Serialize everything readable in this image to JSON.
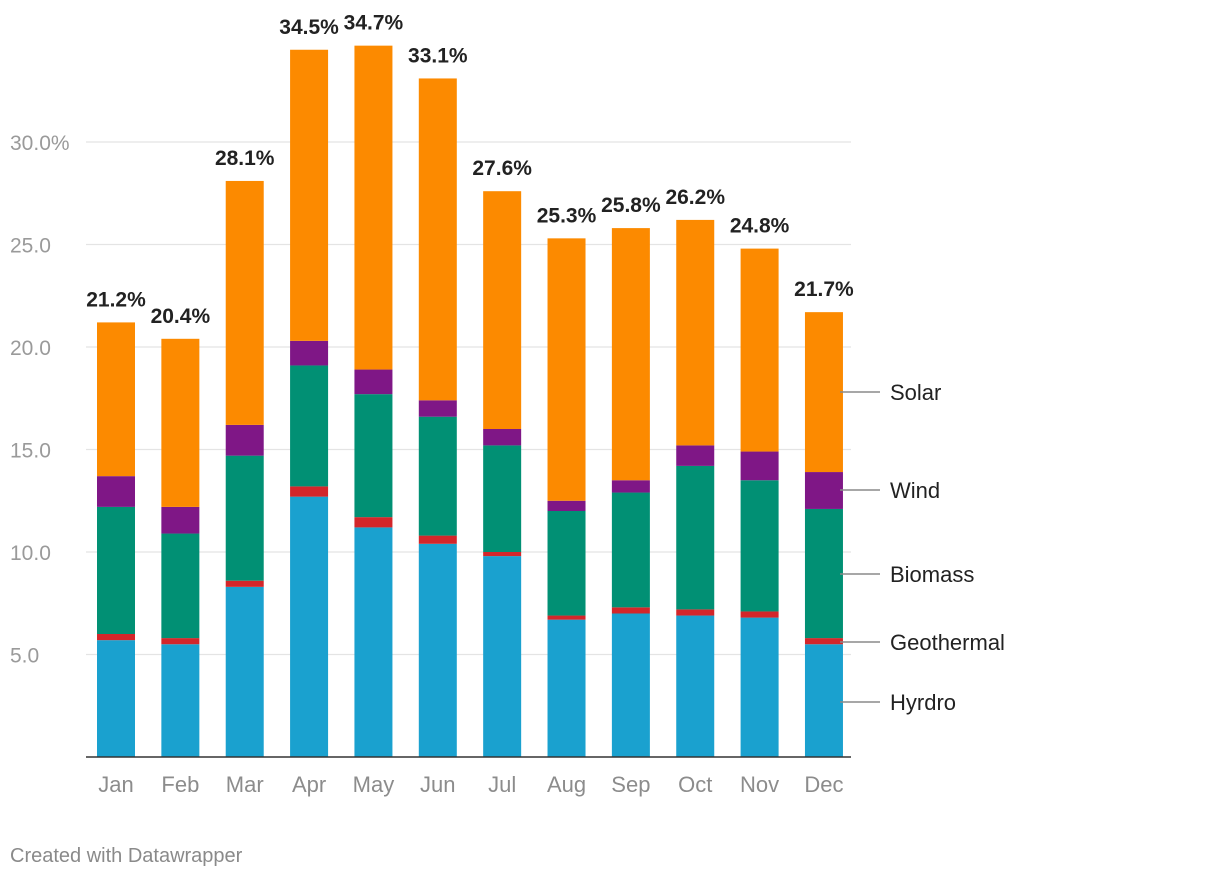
{
  "chart_data": {
    "type": "bar",
    "stacked": true,
    "categories": [
      "Jan",
      "Feb",
      "Mar",
      "Apr",
      "May",
      "Jun",
      "Jul",
      "Aug",
      "Sep",
      "Oct",
      "Nov",
      "Dec"
    ],
    "series": [
      {
        "name": "Hyrdro",
        "color": "#1aa1cf",
        "values": [
          5.7,
          5.5,
          8.3,
          12.7,
          11.2,
          10.4,
          9.8,
          6.7,
          7.0,
          6.9,
          6.8,
          5.5
        ]
      },
      {
        "name": "Geothermal",
        "color": "#d3262a",
        "values": [
          0.3,
          0.3,
          0.3,
          0.5,
          0.5,
          0.4,
          0.2,
          0.2,
          0.3,
          0.3,
          0.3,
          0.3
        ]
      },
      {
        "name": "Biomass",
        "color": "#019074",
        "values": [
          6.2,
          5.1,
          6.1,
          5.9,
          6.0,
          5.8,
          5.2,
          5.1,
          5.6,
          7.0,
          6.4,
          6.3
        ]
      },
      {
        "name": "Wind",
        "color": "#7f1786",
        "values": [
          1.5,
          1.3,
          1.5,
          1.2,
          1.2,
          0.8,
          0.8,
          0.5,
          0.6,
          1.0,
          1.4,
          1.8
        ]
      },
      {
        "name": "Solar",
        "color": "#fc8a00",
        "values": [
          7.5,
          8.2,
          11.9,
          14.2,
          15.8,
          15.7,
          11.6,
          12.8,
          12.3,
          11.0,
          9.9,
          7.8
        ]
      }
    ],
    "totals": [
      21.2,
      20.4,
      28.1,
      34.5,
      34.7,
      33.1,
      27.6,
      25.3,
      25.8,
      26.2,
      24.8,
      21.7
    ],
    "total_labels": [
      "21.2%",
      "20.4%",
      "28.1%",
      "34.5%",
      "34.7%",
      "33.1%",
      "27.6%",
      "25.3%",
      "25.8%",
      "26.2%",
      "24.8%",
      "21.7%"
    ],
    "y_ticks": [
      5,
      10,
      15,
      20,
      25,
      30
    ],
    "y_tick_labels": [
      "5.0",
      "10.0",
      "15.0",
      "20.0",
      "25.0",
      "30.0%"
    ],
    "ylim": [
      0,
      35
    ],
    "legend_placement": "right, aligned to last bar",
    "title": "",
    "xlabel": "",
    "ylabel": ""
  },
  "footer": {
    "credit": "Created with Datawrapper"
  }
}
